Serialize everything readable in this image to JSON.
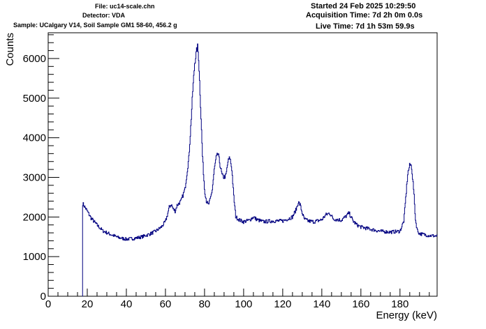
{
  "header": {
    "file": "File: uc14-scale.chn",
    "detector": "Detector: VDA",
    "sample": "Sample: UCalgary V14, Soil Sample GM1 58-60, 456.2 g",
    "started": "Started 24 Feb 2025 10:29:50",
    "acquisition": "Acquisition Time: 7d 2h 0m 0.0s",
    "live": "Live Time: 7d 1h 53m 59.9s"
  },
  "chart_data": {
    "type": "line",
    "title": "",
    "xlabel": "Energy (keV)",
    "ylabel": "Counts",
    "xlim": [
      0,
      199
    ],
    "ylim": [
      0,
      6650
    ],
    "x_ticks": [
      0,
      20,
      40,
      60,
      80,
      100,
      120,
      140,
      160,
      180
    ],
    "y_ticks": [
      0,
      1000,
      2000,
      3000,
      4000,
      5000,
      6000
    ],
    "grid": false,
    "legend": "none",
    "line_color": "#000080",
    "x": [
      17.5,
      17.6,
      20,
      22,
      25,
      28,
      32,
      36,
      40,
      44,
      48,
      52,
      55,
      58,
      60,
      61,
      62,
      63,
      64,
      65,
      66,
      68,
      70,
      72,
      73,
      74,
      75,
      76,
      76.5,
      77,
      78,
      79,
      80,
      81,
      82,
      83,
      84,
      85,
      86,
      87,
      88,
      89,
      90,
      91,
      92,
      93,
      94,
      95,
      96,
      98,
      100,
      103,
      105,
      107,
      110,
      115,
      120,
      125,
      127,
      128,
      129,
      130,
      131,
      133,
      136,
      140,
      142,
      144,
      146,
      150,
      152,
      154,
      156,
      158,
      160,
      165,
      170,
      175,
      180,
      182,
      183,
      184,
      185,
      185.5,
      186,
      187,
      188,
      189,
      190,
      192,
      195,
      199
    ],
    "y": [
      0,
      2350,
      2150,
      1970,
      1800,
      1650,
      1560,
      1480,
      1440,
      1460,
      1500,
      1570,
      1640,
      1750,
      1880,
      2050,
      2250,
      2320,
      2200,
      2150,
      2300,
      2400,
      2700,
      3500,
      4300,
      5200,
      5900,
      6200,
      6300,
      6000,
      4800,
      3500,
      2700,
      2400,
      2300,
      2450,
      2700,
      3200,
      3500,
      3600,
      3300,
      3050,
      3000,
      3050,
      3400,
      3500,
      3200,
      2500,
      2000,
      1920,
      1880,
      1920,
      2000,
      1930,
      1880,
      1900,
      1900,
      2000,
      2200,
      2380,
      2300,
      2100,
      1950,
      1900,
      1880,
      1930,
      2050,
      2100,
      1950,
      1920,
      2000,
      2100,
      1900,
      1800,
      1750,
      1690,
      1640,
      1620,
      1640,
      1900,
      2500,
      3100,
      3300,
      3320,
      3250,
      2700,
      1900,
      1650,
      1580,
      1560,
      1530,
      1520
    ]
  }
}
